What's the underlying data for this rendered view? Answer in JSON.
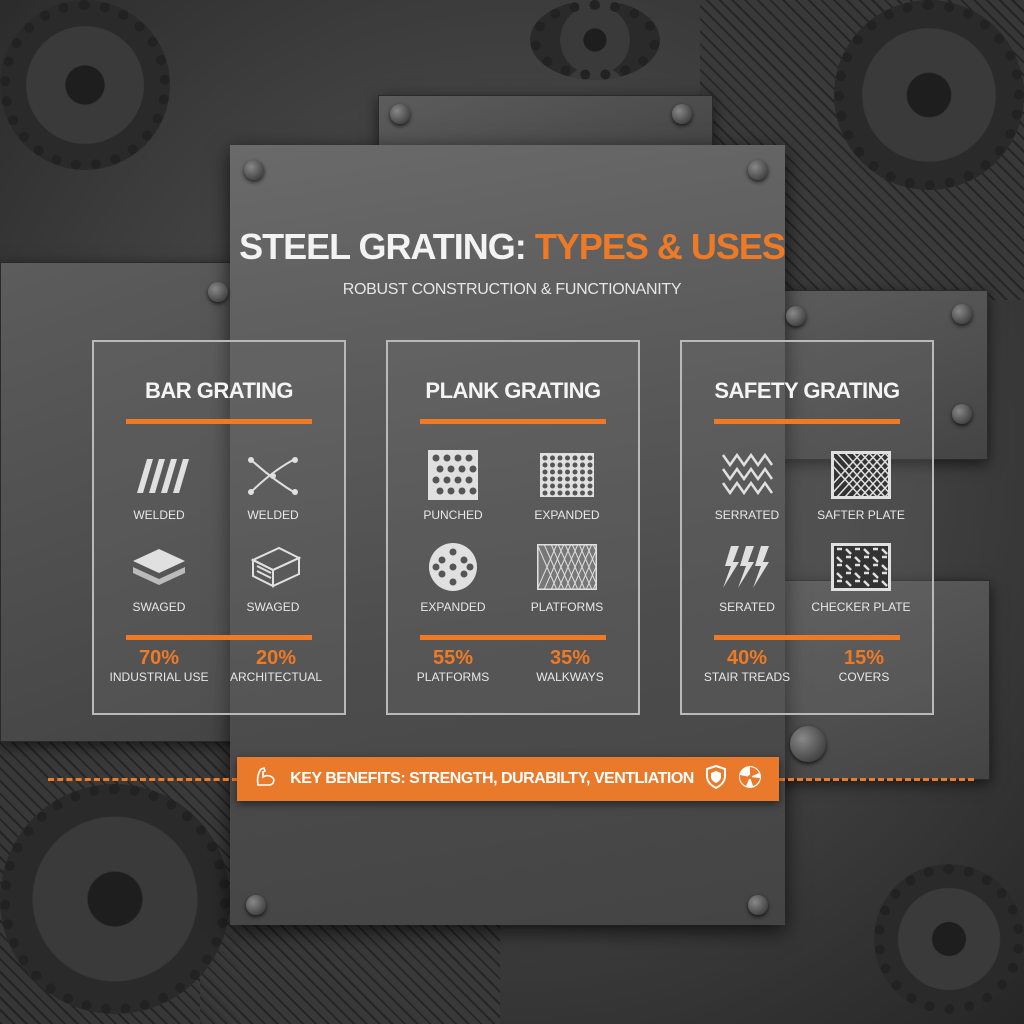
{
  "title": {
    "main": "STEEL GRATING:",
    "accent": "TYPES & USES",
    "subtitle": "ROBUST CONSTRUCTION & FUNCTIONANITY"
  },
  "accent_color": "#ef7a26",
  "cards": [
    {
      "heading": "BAR GRATING",
      "items": [
        {
          "label": "WELDED",
          "icon": "parallel-bars-icon"
        },
        {
          "label": "WELDED",
          "icon": "crossed-wires-icon"
        },
        {
          "label": "SWAGED",
          "icon": "stacked-plates-icon"
        },
        {
          "label": "SWAGED",
          "icon": "bar-block-icon"
        }
      ],
      "stats": [
        {
          "value": "70%",
          "label": "INDUSTRIAL USE"
        },
        {
          "value": "20%",
          "label": "ARCHITECTUAL"
        }
      ]
    },
    {
      "heading": "PLANK GRATING",
      "items": [
        {
          "label": "PUNCHED",
          "icon": "punched-plate-icon"
        },
        {
          "label": "EXPANDED",
          "icon": "dotted-plate-icon"
        },
        {
          "label": "EXPANDED",
          "icon": "round-perforated-icon"
        },
        {
          "label": "PLATFORMS",
          "icon": "mesh-plate-icon"
        }
      ],
      "stats": [
        {
          "value": "55%",
          "label": "PLATFORMS"
        },
        {
          "value": "35%",
          "label": "WALKWAYS"
        }
      ]
    },
    {
      "heading": "SAFETY GRATING",
      "items": [
        {
          "label": "SERRATED",
          "icon": "serrated-zigzag-icon"
        },
        {
          "label": "SAFTER PLATE",
          "icon": "crosshatch-plate-icon"
        },
        {
          "label": "SERATED",
          "icon": "lightning-bolts-icon"
        },
        {
          "label": "CHECKER PLATE",
          "icon": "checker-plate-icon"
        }
      ],
      "stats": [
        {
          "value": "40%",
          "label": "STAIR TREADS"
        },
        {
          "value": "15%",
          "label": "COVERS"
        }
      ]
    }
  ],
  "banner": {
    "text": "KEY BENEFITS: STRENGTH, DURABILTY, VENTLIATION",
    "icons": [
      "flexed-arm-icon",
      "shield-icon",
      "fan-icon"
    ]
  }
}
